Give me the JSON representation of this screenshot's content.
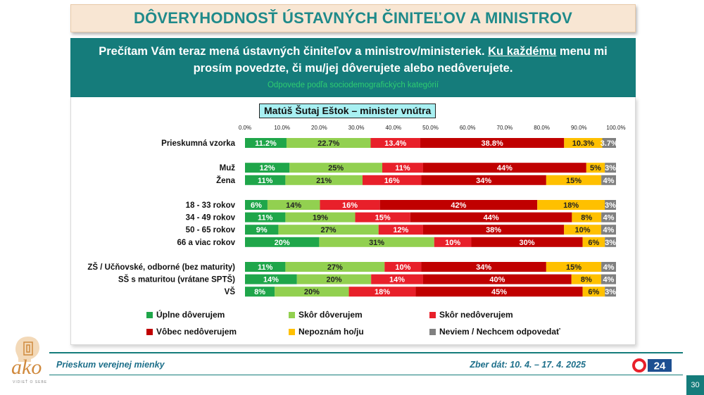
{
  "header": {
    "title": "DÔVERYHODNOSŤ ÚSTAVNÝCH ČINITEĽOV A MINISTROV"
  },
  "question": {
    "part1": "Prečítam Vám teraz mená ústavných činiteľov a ministrov/ministeriek.",
    "underlined": "Ku každému",
    "part2": "menu mi prosím povedzte, či mu/jej dôverujete alebo nedôverujete.",
    "subtitle": "Odpovede podľa sociodemografických kategórií"
  },
  "footer": {
    "survey": "Prieskum verejnej mienky",
    "collection": "Zber dát: 10. 4. – 17. 4. 2025",
    "page": "30",
    "logo_text": "ako",
    "logo_sub": "VIDIEŤ O SEBE",
    "tv_logo": "24"
  },
  "colors": {
    "teal": "#157c7b",
    "full_trust": "#1fa64a",
    "rather_trust": "#92d050",
    "rather_distrust": "#e8202a",
    "no_trust": "#c00000",
    "dont_know_person": "#ffc000",
    "dont_know": "#808080"
  },
  "chart_data": {
    "type": "bar",
    "orientation": "horizontal-stacked-100",
    "title": "Matúš Šutaj Eštok – minister vnútra",
    "xlim": [
      0,
      100
    ],
    "x_ticks": [
      "0.0%",
      "10.0%",
      "20.0%",
      "30.0%",
      "40.0%",
      "50.0%",
      "60.0%",
      "70.0%",
      "80.0%",
      "90.0%",
      "100.0%"
    ],
    "series_names": [
      "Úplne dôverujem",
      "Skôr dôverujem",
      "Skôr nedôverujem",
      "Vôbec nedôverujem",
      "Nepoznám ho/ju",
      "Neviem / Nechcem odpovedať"
    ],
    "series_colors": [
      "#1fa64a",
      "#92d050",
      "#e8202a",
      "#c00000",
      "#ffc000",
      "#808080"
    ],
    "categories": [
      {
        "label": "Prieskumná vzorka",
        "values": [
          11.2,
          22.7,
          13.4,
          38.8,
          10.3,
          3.7
        ],
        "labels": [
          "11.2%",
          "22.7%",
          "13.4%",
          "38.8%",
          "10.3%",
          "3.7%"
        ],
        "gap_before": 0
      },
      {
        "label": "Muž",
        "values": [
          12,
          25,
          11,
          44,
          5,
          3
        ],
        "labels": [
          "12%",
          "25%",
          "11%",
          "44%",
          "5%",
          "3%"
        ],
        "gap_before": 1
      },
      {
        "label": "Žena",
        "values": [
          11,
          21,
          16,
          34,
          15,
          4
        ],
        "labels": [
          "11%",
          "21%",
          "16%",
          "34%",
          "15%",
          "4%"
        ],
        "gap_before": 0
      },
      {
        "label": "18 - 33 rokov",
        "values": [
          6,
          14,
          16,
          42,
          18,
          3
        ],
        "labels": [
          "6%",
          "14%",
          "16%",
          "42%",
          "18%",
          "3%"
        ],
        "gap_before": 1
      },
      {
        "label": "34 - 49 rokov",
        "values": [
          11,
          19,
          15,
          44,
          8,
          4
        ],
        "labels": [
          "11%",
          "19%",
          "15%",
          "44%",
          "8%",
          "4%"
        ],
        "gap_before": 0
      },
      {
        "label": "50 - 65 rokov",
        "values": [
          9,
          27,
          12,
          38,
          10,
          4
        ],
        "labels": [
          "9%",
          "27%",
          "12%",
          "38%",
          "10%",
          "4%"
        ],
        "gap_before": 0
      },
      {
        "label": "66 a viac rokov",
        "values": [
          20,
          31,
          10,
          30,
          6,
          3
        ],
        "labels": [
          "20%",
          "31%",
          "10%",
          "30%",
          "6%",
          "3%"
        ],
        "gap_before": 0
      },
      {
        "label": "ZŠ / Učňovské, odborné (bez maturity)",
        "values": [
          11,
          27,
          10,
          34,
          15,
          4
        ],
        "labels": [
          "11%",
          "27%",
          "10%",
          "34%",
          "15%",
          "4%"
        ],
        "gap_before": 1
      },
      {
        "label": "SŠ s maturitou (vrátane SPTŠ)",
        "values": [
          14,
          20,
          14,
          40,
          8,
          4
        ],
        "labels": [
          "14%",
          "20%",
          "14%",
          "40%",
          "8%",
          "4%"
        ],
        "gap_before": 0
      },
      {
        "label": "VŠ",
        "values": [
          8,
          20,
          18,
          45,
          6,
          3
        ],
        "labels": [
          "8%",
          "20%",
          "18%",
          "45%",
          "6%",
          "3%"
        ],
        "gap_before": 0
      }
    ]
  }
}
